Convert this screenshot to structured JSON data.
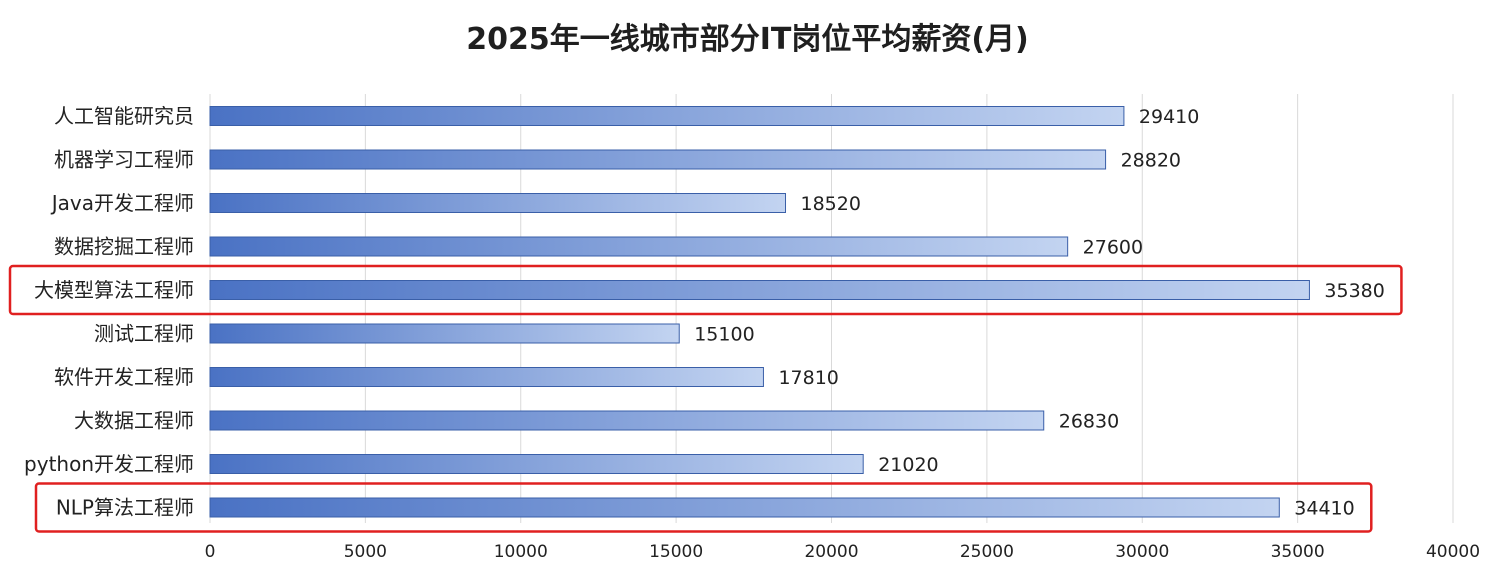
{
  "chart_data": {
    "type": "bar",
    "orientation": "horizontal",
    "title": "2025年一线城市部分IT岗位平均薪资(月)",
    "categories": [
      "人工智能研究员",
      "机器学习工程师",
      "Java开发工程师",
      "数据挖掘工程师",
      "大模型算法工程师",
      "测试工程师",
      "软件开发工程师",
      "大数据工程师",
      "python开发工程师",
      "NLP算法工程师"
    ],
    "values": [
      29410,
      28820,
      18520,
      27600,
      35380,
      15100,
      17810,
      26830,
      21020,
      34410
    ],
    "highlighted": [
      "大模型算法工程师",
      "NLP算法工程师"
    ],
    "xlim": [
      0,
      40000
    ],
    "xticks": [
      0,
      5000,
      10000,
      15000,
      20000,
      25000,
      30000,
      35000,
      40000
    ],
    "grid": "vertical",
    "xlabel": "",
    "ylabel": "",
    "colors": {
      "bar_start": "#4a72c4",
      "bar_end": "#c3d4f1",
      "bar_border": "#3a5fa8",
      "grid": "#d9d9d9",
      "highlight": "#e02020"
    }
  }
}
